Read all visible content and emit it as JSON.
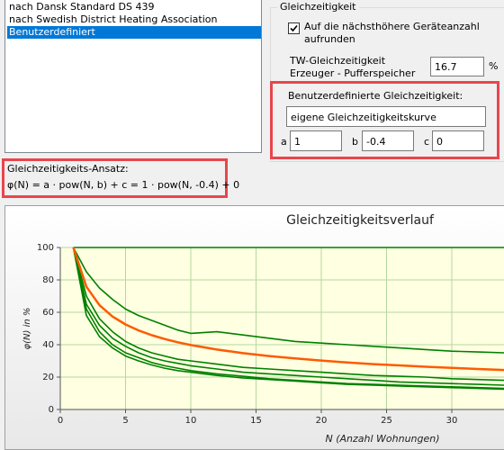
{
  "list": {
    "items": [
      "nach Dansk Standard DS 439",
      "nach Swedish District Heating Association",
      "Benutzerdefiniert"
    ],
    "selected": 2
  },
  "group": {
    "title": "Gleichzeitigkeit",
    "checkbox_lines": [
      "Auf die nächsthöhere Geräteanzahl",
      "aufrunden"
    ],
    "checked": true,
    "tw_lines": [
      "TW-Gleichzeitigkeit",
      "Erzeuger - Pufferspeicher"
    ],
    "tw_value": 16.7,
    "tw_unit": "%",
    "custom": {
      "title": "Benutzerdefinierte Gleichzeitigkeit:",
      "curve_name": "eigene Gleichzeitigkeitskurve",
      "a_label": "a",
      "a": 1,
      "b_label": "b",
      "b": -0.4,
      "c_label": "c",
      "c": 0
    }
  },
  "formula": {
    "title": "Gleichzeitigkeits-Ansatz:",
    "text": "φ(N) = a · pow(N, b) + c = 1 · pow(N, -0.4) + 0"
  },
  "chart_data": {
    "type": "line",
    "title": "Gleichzeitigkeitsverlauf",
    "ylabel": "φ(N) in %",
    "xlabel": "N (Anzahl Wohnungen)",
    "xlim": [
      0,
      34
    ],
    "ylim": [
      0,
      100
    ],
    "xticks": [
      0,
      5,
      10,
      15,
      20,
      25,
      30
    ],
    "yticks": [
      0,
      20,
      40,
      60,
      80,
      100
    ],
    "grid": true,
    "x": [
      1,
      2,
      3,
      4,
      5,
      6,
      7,
      8,
      9,
      10,
      12,
      14,
      16,
      18,
      20,
      22,
      24,
      26,
      28,
      30,
      32,
      34
    ],
    "series": [
      {
        "color": "#008000",
        "values": [
          100,
          100,
          100,
          100,
          100,
          100,
          100,
          100,
          100,
          100,
          100,
          100,
          100,
          100,
          100,
          100,
          100,
          100,
          100,
          100,
          100,
          100
        ]
      },
      {
        "color": "#008000",
        "values": [
          100,
          85,
          75,
          68,
          62,
          58,
          55,
          52,
          49,
          47,
          48,
          46,
          44,
          42,
          41,
          40,
          39,
          38,
          37,
          36,
          35.5,
          35
        ]
      },
      {
        "color": "#008000",
        "values": [
          100,
          70,
          56,
          48,
          42,
          38,
          35,
          33,
          31,
          30,
          28,
          26,
          25,
          24,
          23,
          22,
          21,
          20.5,
          20,
          19,
          18.5,
          18
        ]
      },
      {
        "color": "#008000",
        "values": [
          100,
          65,
          52,
          44,
          39,
          35,
          32,
          30,
          28.5,
          27,
          25,
          23,
          22,
          21,
          20,
          19,
          18,
          17,
          16.5,
          16,
          15.5,
          15
        ]
      },
      {
        "color": "#008000",
        "values": [
          100,
          62,
          48,
          40,
          35,
          32,
          29,
          27,
          25.5,
          24,
          22,
          20.5,
          19,
          18,
          17,
          16,
          15.5,
          15,
          14.5,
          14,
          13.5,
          13
        ]
      },
      {
        "color": "#008000",
        "values": [
          100,
          58,
          45,
          38,
          33,
          30,
          27.5,
          25.5,
          24,
          23,
          21,
          19.5,
          18.5,
          17.5,
          16.5,
          15.5,
          15,
          14.5,
          14,
          13.5,
          13,
          12.5
        ]
      },
      {
        "color": "#ff5a00",
        "values": [
          100,
          75.8,
          64.4,
          57.4,
          52.5,
          48.8,
          45.9,
          43.5,
          41.5,
          39.8,
          37.0,
          34.8,
          33.0,
          31.5,
          30.2,
          29.0,
          28.0,
          27.2,
          26.4,
          25.7,
          25.0,
          24.4
        ]
      }
    ]
  }
}
